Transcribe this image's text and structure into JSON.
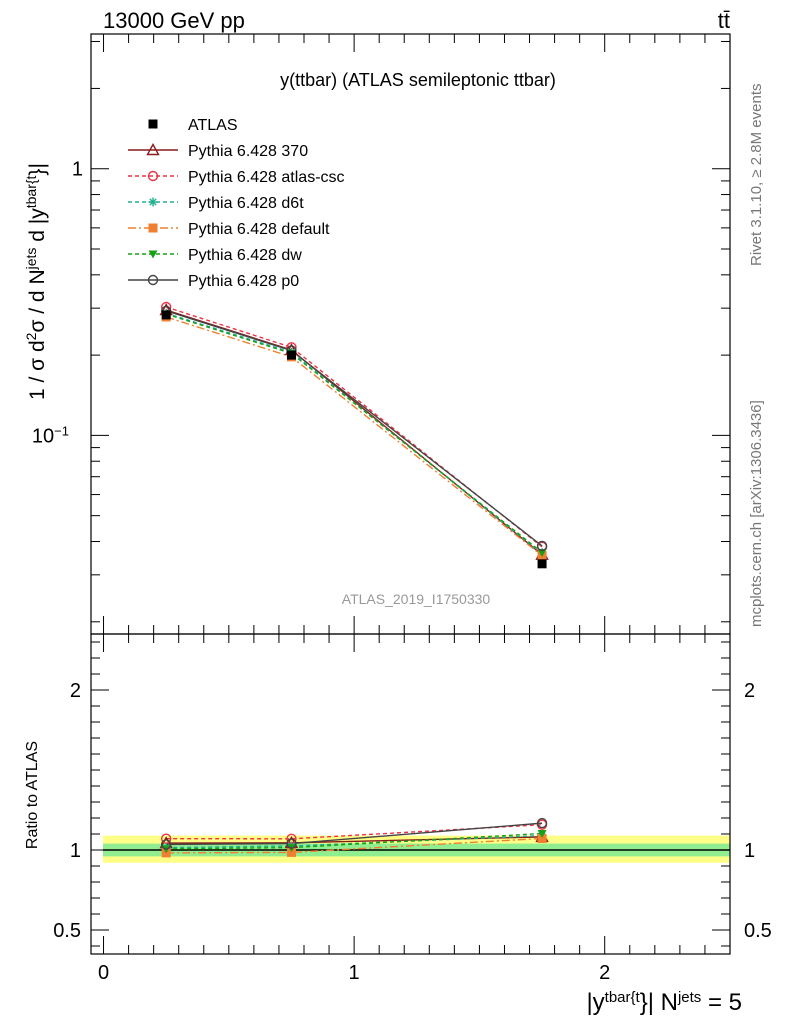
{
  "header": {
    "left": "13000 GeV pp",
    "right": "tt̄"
  },
  "side_labels": {
    "rivet": "Rivet 3.1.10, ≥ 2.8M events",
    "mcplots": "mcplots.cern.ch [arXiv:1306.3436]"
  },
  "chart_data": [
    {
      "type": "line",
      "title": "y(ttbar) (ATLAS semileptonic ttbar)",
      "watermark": "ATLAS_2019_I1750330",
      "ylabel": {
        "prefix": "1 / σ d",
        "sup1": "2",
        "mid1": "σ / d N",
        "sup2": "jets",
        "mid2": " d |y",
        "sup3": "tbar{t",
        "suffix": "}|"
      },
      "yscale": "log",
      "ylim": [
        0.018,
        3.2
      ],
      "xlim": [
        -0.05,
        2.5
      ],
      "yticks": [
        {
          "value": 1,
          "label": "1"
        },
        {
          "value": 0.1,
          "label": "10",
          "sup": "−1"
        }
      ],
      "x": [
        0.25,
        0.75,
        1.75
      ],
      "reference": {
        "name": "ATLAS",
        "values": [
          0.283,
          0.2,
          0.033
        ]
      },
      "series": [
        {
          "name": "Pythia 6.428 370",
          "color": "#8b1a1a",
          "dash": "",
          "marker": "triangle-open",
          "values": [
            0.295,
            0.209,
            0.0357
          ]
        },
        {
          "name": "Pythia 6.428 atlas-csc",
          "color": "#ee3344",
          "dash": "4,3",
          "marker": "circle-open",
          "values": [
            0.303,
            0.214,
            0.0382
          ]
        },
        {
          "name": "Pythia 6.428 d6t",
          "color": "#20b090",
          "dash": "4,3",
          "marker": "star",
          "values": [
            0.287,
            0.205,
            0.036
          ]
        },
        {
          "name": "Pythia 6.428 default",
          "color": "#f08030",
          "dash": "8,3,2,3",
          "marker": "square",
          "values": [
            0.278,
            0.197,
            0.0354
          ]
        },
        {
          "name": "Pythia 6.428 dw",
          "color": "#18a018",
          "dash": "4,3",
          "marker": "triangle-down",
          "values": [
            0.285,
            0.203,
            0.0364
          ]
        },
        {
          "name": "Pythia 6.428 p0",
          "color": "#444444",
          "dash": "",
          "marker": "circle-open",
          "values": [
            0.293,
            0.208,
            0.0385
          ]
        }
      ]
    },
    {
      "type": "line",
      "ylabel": "Ratio to ATLAS",
      "ylim": [
        0.35,
        2.35
      ],
      "xlim": [
        -0.05,
        2.5
      ],
      "yticks": [
        {
          "value": 0.5,
          "label": "0.5"
        },
        {
          "value": 1,
          "label": "1"
        },
        {
          "value": 2,
          "label": "2"
        }
      ],
      "xticks": [
        {
          "value": 0,
          "label": "0"
        },
        {
          "value": 1,
          "label": "1"
        },
        {
          "value": 2,
          "label": "2"
        }
      ],
      "xlabel": {
        "prefix": "|y",
        "sup1": "tbar{t",
        "mid": "}| N",
        "sup2": "jets",
        "suffix": " = 5"
      },
      "bands": [
        {
          "color": "#ffff88",
          "low": 0.92,
          "high": 1.09
        },
        {
          "color": "#90ee90",
          "low": 0.96,
          "high": 1.04
        }
      ],
      "x": [
        0.25,
        0.75,
        1.75
      ],
      "series": [
        {
          "name": "Pythia 6.428 370",
          "values": [
            1.043,
            1.045,
            1.082
          ]
        },
        {
          "name": "Pythia 6.428 atlas-csc",
          "values": [
            1.071,
            1.07,
            1.158
          ]
        },
        {
          "name": "Pythia 6.428 d6t",
          "values": [
            1.015,
            1.025,
            1.09
          ]
        },
        {
          "name": "Pythia 6.428 default",
          "values": [
            0.982,
            0.985,
            1.072
          ]
        },
        {
          "name": "Pythia 6.428 dw",
          "values": [
            1.007,
            1.015,
            1.103
          ]
        },
        {
          "name": "Pythia 6.428 p0",
          "values": [
            1.035,
            1.04,
            1.168
          ]
        }
      ]
    }
  ]
}
